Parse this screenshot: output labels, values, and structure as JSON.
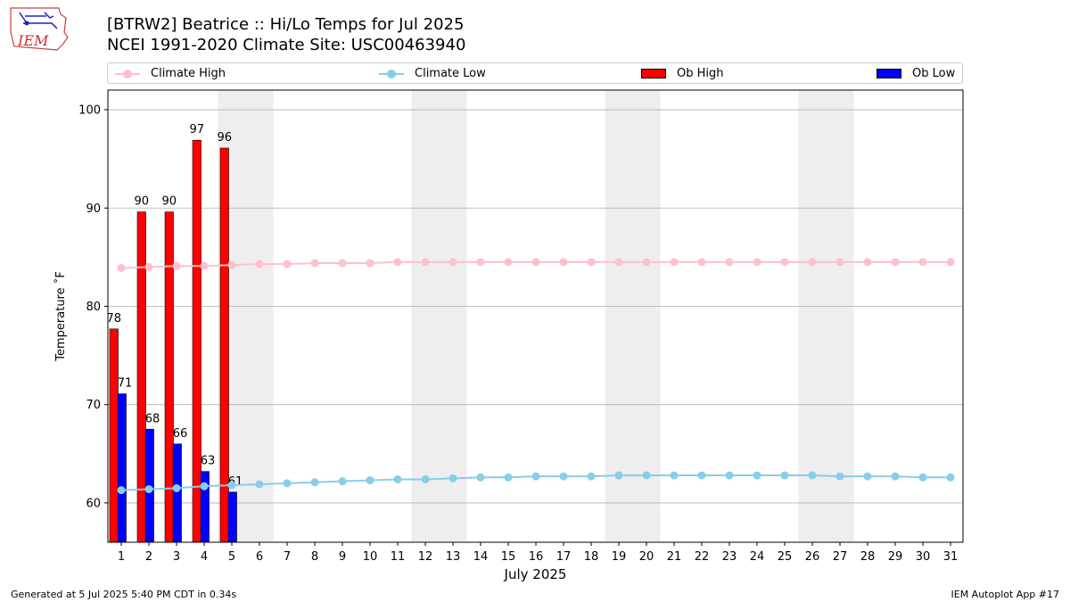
{
  "header": {
    "title_line1": "[BTRW2] Beatrice :: Hi/Lo Temps for Jul 2025",
    "title_line2": "NCEI 1991-2020 Climate Site: USC00463940",
    "logo_text": "IEM"
  },
  "footer": {
    "left": "Generated at 5 Jul 2025 5:40 PM CDT in 0.34s",
    "right": "IEM Autoplot App #17"
  },
  "colors": {
    "climate_high": "#ffc0cb",
    "climate_low": "#87ceeb",
    "ob_high": "#ff0000",
    "ob_low": "#0000ff",
    "weekend_shade": "#eeeeee",
    "grid": "#b0b0b0"
  },
  "chart_data": {
    "type": "bar",
    "xlabel": "July 2025",
    "ylabel": "Temperature ˚F",
    "ylim": [
      56,
      102
    ],
    "yticks": [
      60,
      70,
      80,
      90,
      100
    ],
    "y_grid": true,
    "legend_placement": "top",
    "days": [
      1,
      2,
      3,
      4,
      5,
      6,
      7,
      8,
      9,
      10,
      11,
      12,
      13,
      14,
      15,
      16,
      17,
      18,
      19,
      20,
      21,
      22,
      23,
      24,
      25,
      26,
      27,
      28,
      29,
      30,
      31
    ],
    "weekend_shaded_days": [
      [
        5,
        6
      ],
      [
        12,
        13
      ],
      [
        19,
        20
      ],
      [
        26,
        27
      ]
    ],
    "series": [
      {
        "name": "Climate High",
        "kind": "line",
        "values": [
          83.9,
          84.0,
          84.1,
          84.1,
          84.2,
          84.3,
          84.3,
          84.4,
          84.4,
          84.4,
          84.5,
          84.5,
          84.5,
          84.5,
          84.5,
          84.5,
          84.5,
          84.5,
          84.5,
          84.5,
          84.5,
          84.5,
          84.5,
          84.5,
          84.5,
          84.5,
          84.5,
          84.5,
          84.5,
          84.5,
          84.5
        ]
      },
      {
        "name": "Climate Low",
        "kind": "line",
        "values": [
          61.3,
          61.4,
          61.5,
          61.7,
          61.8,
          61.9,
          62.0,
          62.1,
          62.2,
          62.3,
          62.4,
          62.4,
          62.5,
          62.6,
          62.6,
          62.7,
          62.7,
          62.7,
          62.8,
          62.8,
          62.8,
          62.8,
          62.8,
          62.8,
          62.8,
          62.8,
          62.7,
          62.7,
          62.7,
          62.6,
          62.6
        ]
      },
      {
        "name": "Ob High",
        "kind": "bar",
        "values": [
          77.7,
          89.6,
          89.6,
          96.9,
          96.1
        ],
        "labels": [
          "78",
          "90",
          "90",
          "97",
          "96"
        ]
      },
      {
        "name": "Ob Low",
        "kind": "bar",
        "values": [
          71.1,
          67.5,
          66.0,
          63.2,
          61.1
        ],
        "labels": [
          "71",
          "68",
          "66",
          "63",
          "61"
        ]
      }
    ]
  }
}
